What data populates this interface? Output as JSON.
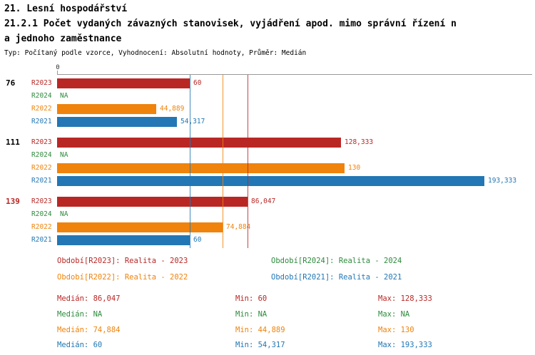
{
  "header": {
    "line1": "21. Lesní hospodářství",
    "line2": "21.2.1 Počet vydaných závazných stanovisek, vyjádření apod. mimo správní řízení n",
    "line3": "a jednoho zaměstnance",
    "subtitle": "Typ: Počítaný podle vzorce, Vyhodnocení: Absolutní hodnoty, Průměr: Medián"
  },
  "colors": {
    "R2023": "#b92725",
    "R2024": "#2e8b3d",
    "R2022": "#ef830c",
    "R2021": "#2277b4"
  },
  "chart_data": {
    "type": "bar",
    "orientation": "horizontal",
    "title": "21.2.1 Počet vydaných závazných stanovisek, vyjádření apod. mimo správní řízení na jednoho zaměstnance",
    "xlabel": "",
    "ylabel": "",
    "xlim": [
      0,
      214
    ],
    "axis_origin_label": "0",
    "grid": false,
    "series_order": [
      "R2023",
      "R2024",
      "R2022",
      "R2021"
    ],
    "groups": [
      {
        "label": "76",
        "label_color": "#000000",
        "rows": [
          {
            "series": "R2023",
            "value": 60,
            "display": "60"
          },
          {
            "series": "R2024",
            "value": null,
            "display": "NA"
          },
          {
            "series": "R2022",
            "value": 44.889,
            "display": "44,889"
          },
          {
            "series": "R2021",
            "value": 54.317,
            "display": "54,317"
          }
        ]
      },
      {
        "label": "111",
        "label_color": "#000000",
        "rows": [
          {
            "series": "R2023",
            "value": 128.333,
            "display": "128,333"
          },
          {
            "series": "R2024",
            "value": null,
            "display": "NA"
          },
          {
            "series": "R2022",
            "value": 130,
            "display": "130"
          },
          {
            "series": "R2021",
            "value": 193.333,
            "display": "193,333"
          }
        ]
      },
      {
        "label": "139",
        "label_color": "#b92725",
        "rows": [
          {
            "series": "R2023",
            "value": 86.047,
            "display": "86,047"
          },
          {
            "series": "R2024",
            "value": null,
            "display": "NA"
          },
          {
            "series": "R2022",
            "value": 74.884,
            "display": "74,884"
          },
          {
            "series": "R2021",
            "value": 60,
            "display": "60"
          }
        ]
      }
    ],
    "median_lines": [
      {
        "series": "R2021",
        "value": 60
      },
      {
        "series": "R2022",
        "value": 74.884
      },
      {
        "series": "R2023",
        "value": 86.047
      }
    ]
  },
  "legend": [
    {
      "series": "R2023",
      "label": "Období[R2023]: Realita - 2023"
    },
    {
      "series": "R2024",
      "label": "Období[R2024]: Realita - 2024"
    },
    {
      "series": "R2022",
      "label": "Období[R2022]: Realita - 2022"
    },
    {
      "series": "R2021",
      "label": "Období[R2021]: Realita - 2021"
    }
  ],
  "stats": [
    {
      "series": "R2023",
      "median": "Medián: 86,047",
      "min": "Min: 60",
      "max": "Max: 128,333"
    },
    {
      "series": "R2024",
      "median": "Medián: NA",
      "min": "Min: NA",
      "max": "Max: NA"
    },
    {
      "series": "R2022",
      "median": "Medián: 74,884",
      "min": "Min: 44,889",
      "max": "Max: 130"
    },
    {
      "series": "R2021",
      "median": "Medián: 60",
      "min": "Min: 54,317",
      "max": "Max: 193,333"
    }
  ]
}
